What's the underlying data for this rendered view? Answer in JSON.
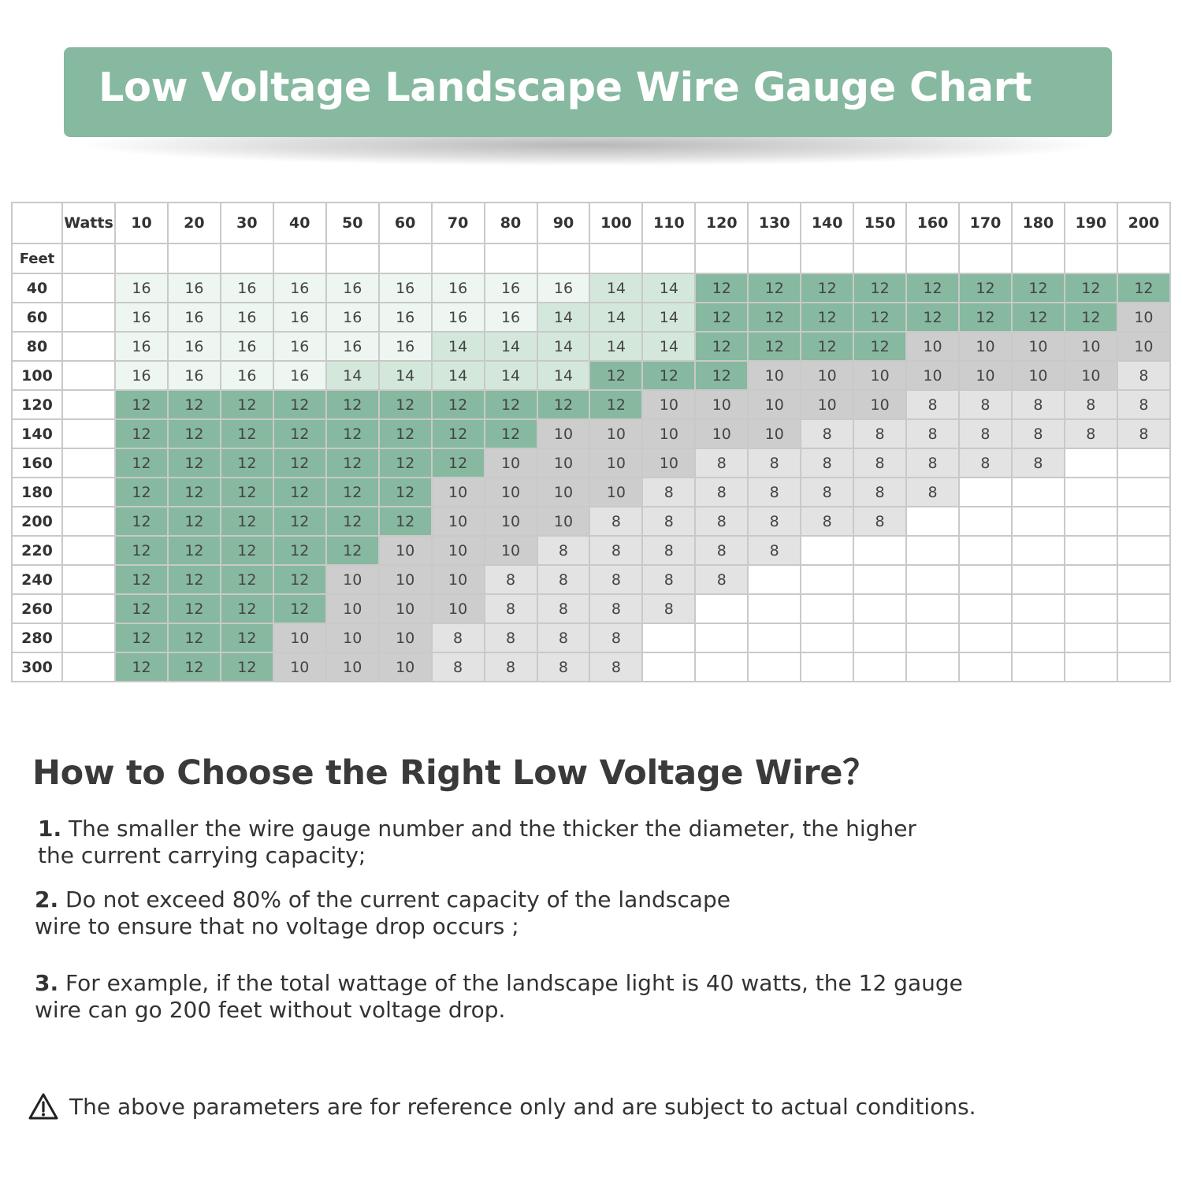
{
  "header": {
    "title": "Low Voltage Landscape Wire Gauge Chart"
  },
  "table": {
    "watts_label": "Watts",
    "feet_label": "Feet",
    "watts": [
      "10",
      "20",
      "30",
      "40",
      "50",
      "60",
      "70",
      "80",
      "90",
      "100",
      "110",
      "120",
      "130",
      "140",
      "150",
      "160",
      "170",
      "180",
      "190",
      "200"
    ],
    "rows": [
      {
        "feet": "40",
        "gauges": [
          "16",
          "16",
          "16",
          "16",
          "16",
          "16",
          "16",
          "16",
          "16",
          "14",
          "14",
          "12",
          "12",
          "12",
          "12",
          "12",
          "12",
          "12",
          "12",
          "12"
        ]
      },
      {
        "feet": "60",
        "gauges": [
          "16",
          "16",
          "16",
          "16",
          "16",
          "16",
          "16",
          "16",
          "14",
          "14",
          "14",
          "12",
          "12",
          "12",
          "12",
          "12",
          "12",
          "12",
          "12",
          "10"
        ]
      },
      {
        "feet": "80",
        "gauges": [
          "16",
          "16",
          "16",
          "16",
          "16",
          "16",
          "14",
          "14",
          "14",
          "14",
          "14",
          "12",
          "12",
          "12",
          "12",
          "10",
          "10",
          "10",
          "10",
          "10"
        ]
      },
      {
        "feet": "100",
        "gauges": [
          "16",
          "16",
          "16",
          "16",
          "14",
          "14",
          "14",
          "14",
          "14",
          "12",
          "12",
          "12",
          "10",
          "10",
          "10",
          "10",
          "10",
          "10",
          "10",
          "8"
        ]
      },
      {
        "feet": "120",
        "gauges": [
          "12",
          "12",
          "12",
          "12",
          "12",
          "12",
          "12",
          "12",
          "12",
          "12",
          "10",
          "10",
          "10",
          "10",
          "10",
          "8",
          "8",
          "8",
          "8",
          "8"
        ]
      },
      {
        "feet": "140",
        "gauges": [
          "12",
          "12",
          "12",
          "12",
          "12",
          "12",
          "12",
          "12",
          "10",
          "10",
          "10",
          "10",
          "10",
          "8",
          "8",
          "8",
          "8",
          "8",
          "8",
          "8"
        ]
      },
      {
        "feet": "160",
        "gauges": [
          "12",
          "12",
          "12",
          "12",
          "12",
          "12",
          "12",
          "10",
          "10",
          "10",
          "10",
          "8",
          "8",
          "8",
          "8",
          "8",
          "8",
          "8",
          "",
          ""
        ]
      },
      {
        "feet": "180",
        "gauges": [
          "12",
          "12",
          "12",
          "12",
          "12",
          "12",
          "10",
          "10",
          "10",
          "10",
          "8",
          "8",
          "8",
          "8",
          "8",
          "8",
          "",
          "",
          "",
          ""
        ]
      },
      {
        "feet": "200",
        "gauges": [
          "12",
          "12",
          "12",
          "12",
          "12",
          "12",
          "10",
          "10",
          "10",
          "8",
          "8",
          "8",
          "8",
          "8",
          "8",
          "",
          "",
          "",
          "",
          ""
        ]
      },
      {
        "feet": "220",
        "gauges": [
          "12",
          "12",
          "12",
          "12",
          "12",
          "10",
          "10",
          "10",
          "8",
          "8",
          "8",
          "8",
          "8",
          "",
          "",
          "",
          "",
          "",
          "",
          ""
        ]
      },
      {
        "feet": "240",
        "gauges": [
          "12",
          "12",
          "12",
          "12",
          "10",
          "10",
          "10",
          "8",
          "8",
          "8",
          "8",
          "8",
          "",
          "",
          "",
          "",
          "",
          "",
          "",
          ""
        ]
      },
      {
        "feet": "260",
        "gauges": [
          "12",
          "12",
          "12",
          "12",
          "10",
          "10",
          "10",
          "8",
          "8",
          "8",
          "8",
          "",
          "",
          "",
          "",
          "",
          "",
          "",
          "",
          ""
        ]
      },
      {
        "feet": "280",
        "gauges": [
          "12",
          "12",
          "12",
          "10",
          "10",
          "10",
          "8",
          "8",
          "8",
          "8",
          "",
          "",
          "",
          "",
          "",
          "",
          "",
          "",
          "",
          ""
        ]
      },
      {
        "feet": "300",
        "gauges": [
          "12",
          "12",
          "12",
          "10",
          "10",
          "10",
          "8",
          "8",
          "8",
          "8",
          "",
          "",
          "",
          "",
          "",
          "",
          "",
          "",
          "",
          ""
        ]
      }
    ],
    "colors": {
      "16": "#eef6f1",
      "14": "#d3e8db",
      "12": "#86b9a0",
      "10": "#cdcdcd",
      "8": "#e3e3e3",
      "empty": "#ffffff"
    }
  },
  "guide": {
    "title": "How to Choose the Right Low Voltage Wire？",
    "items": [
      {
        "num": "1.",
        "lines": [
          "The smaller the wire gauge number and the thicker the diameter, the higher",
          "the current carrying capacity;"
        ]
      },
      {
        "num": "2.",
        "lines": [
          "Do not exceed 80% of the current capacity of the landscape",
          "wire to ensure that no voltage drop occurs ;"
        ]
      },
      {
        "num": "3.",
        "lines": [
          "For example, if the total wattage of the landscape light is 40 watts, the 12 gauge",
          "wire can go 200 feet without voltage drop."
        ]
      }
    ]
  },
  "disclaimer": {
    "icon": "warning-icon",
    "text": "The above parameters are for reference only and are subject to actual conditions."
  }
}
